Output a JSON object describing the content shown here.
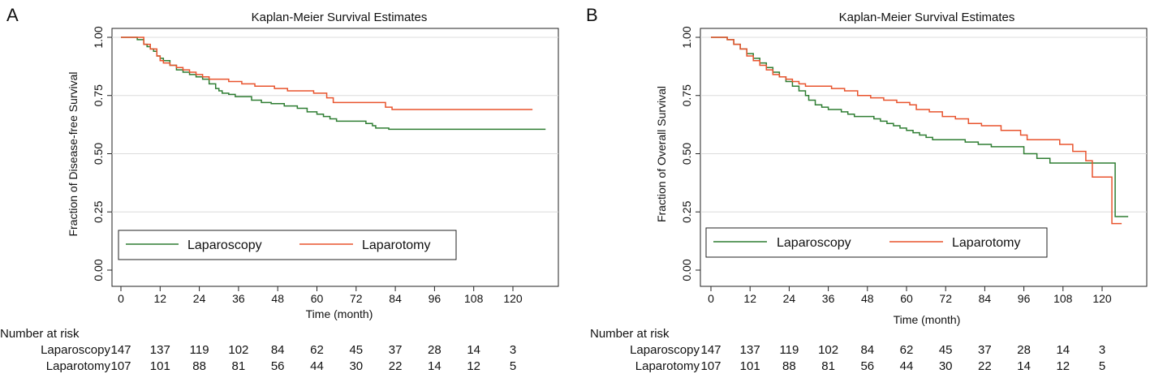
{
  "panels": [
    {
      "panel_label": "A",
      "title": "Kaplan-Meier Survival Estimates",
      "number_at_risk_label": "Number at risk",
      "chart_data": {
        "type": "line",
        "title": "Kaplan-Meier Survival Estimates",
        "xlabel": "Time (month)",
        "ylabel": "Fraction of Disease-free Survival",
        "xlim": [
          0,
          130
        ],
        "ylim": [
          0,
          1
        ],
        "xticks": [
          0,
          12,
          24,
          36,
          48,
          60,
          72,
          84,
          96,
          108,
          120
        ],
        "yticks": [
          0,
          0.25,
          0.5,
          0.75,
          1
        ],
        "ytick_labels": [
          "0.00",
          "0.25",
          "0.50",
          "0.75",
          "1.00"
        ],
        "grid": "horizontal",
        "legend_position": "bottom-inside",
        "series": [
          {
            "name": "Laparoscopy",
            "color": "#2e7d32",
            "x": [
              0,
              5,
              7,
              8,
              9,
              10,
              11,
              12,
              13,
              15,
              17,
              19,
              21,
              23,
              25,
              27,
              29,
              30,
              31,
              33,
              35,
              40,
              43,
              46,
              50,
              54,
              57,
              60,
              62,
              64,
              66,
              70,
              75,
              77,
              78,
              82,
              130
            ],
            "y": [
              1.0,
              0.99,
              0.97,
              0.96,
              0.95,
              0.94,
              0.92,
              0.91,
              0.9,
              0.88,
              0.86,
              0.85,
              0.84,
              0.83,
              0.82,
              0.8,
              0.78,
              0.77,
              0.76,
              0.755,
              0.745,
              0.73,
              0.72,
              0.715,
              0.705,
              0.695,
              0.68,
              0.67,
              0.66,
              0.65,
              0.64,
              0.64,
              0.63,
              0.62,
              0.61,
              0.605,
              0.605
            ]
          },
          {
            "name": "Laparotomy",
            "color": "#e8532d",
            "x": [
              0,
              7,
              9,
              11,
              12,
              13,
              15,
              17,
              19,
              21,
              23,
              25,
              27,
              29,
              33,
              37,
              41,
              47,
              51,
              55,
              59,
              60,
              63,
              65,
              73,
              75,
              81,
              83,
              126
            ],
            "y": [
              1.0,
              0.97,
              0.95,
              0.92,
              0.9,
              0.89,
              0.88,
              0.87,
              0.86,
              0.85,
              0.84,
              0.83,
              0.82,
              0.82,
              0.81,
              0.8,
              0.79,
              0.78,
              0.77,
              0.77,
              0.76,
              0.76,
              0.74,
              0.72,
              0.72,
              0.72,
              0.7,
              0.69,
              0.69
            ]
          }
        ],
        "at_risk": {
          "times": [
            0,
            12,
            24,
            36,
            48,
            60,
            72,
            84,
            96,
            108,
            120
          ],
          "rows": [
            {
              "name": "Laparoscopy",
              "counts": [
                "147",
                "137",
                "119",
                "102",
                "84",
                "62",
                "45",
                "37",
                "28",
                "14",
                "3"
              ]
            },
            {
              "name": "Laparotomy",
              "counts": [
                "107",
                "101",
                "88",
                "81",
                "56",
                "44",
                "30",
                "22",
                "14",
                "12",
                "5"
              ]
            }
          ]
        }
      }
    },
    {
      "panel_label": "B",
      "title": "Kaplan-Meier Survival Estimates",
      "number_at_risk_label": "Number at risk",
      "chart_data": {
        "type": "line",
        "title": "Kaplan-Meier Survival Estimates",
        "xlabel": "Time (month)",
        "ylabel": "Fraction of Overall Survival",
        "xlim": [
          0,
          130
        ],
        "ylim": [
          0,
          1
        ],
        "xticks": [
          0,
          12,
          24,
          36,
          48,
          60,
          72,
          84,
          96,
          108,
          120
        ],
        "yticks": [
          0,
          0.25,
          0.5,
          0.75,
          1
        ],
        "ytick_labels": [
          "0.00",
          "0.25",
          "0.50",
          "0.75",
          "1.00"
        ],
        "grid": "horizontal",
        "legend_position": "bottom-inside",
        "series": [
          {
            "name": "Laparoscopy",
            "color": "#2e7d32",
            "x": [
              0,
              5,
              7,
              9,
              11,
              13,
              15,
              17,
              19,
              21,
              23,
              25,
              27,
              29,
              30,
              32,
              34,
              36,
              40,
              42,
              44,
              46,
              50,
              52,
              54,
              56,
              58,
              60,
              62,
              64,
              66,
              68,
              72,
              78,
              82,
              86,
              96,
              100,
              104,
              110,
              120,
              124,
              128
            ],
            "y": [
              1.0,
              0.99,
              0.97,
              0.95,
              0.93,
              0.91,
              0.89,
              0.87,
              0.85,
              0.83,
              0.81,
              0.79,
              0.77,
              0.75,
              0.73,
              0.71,
              0.7,
              0.69,
              0.68,
              0.67,
              0.66,
              0.66,
              0.65,
              0.64,
              0.63,
              0.62,
              0.61,
              0.6,
              0.59,
              0.58,
              0.57,
              0.56,
              0.56,
              0.55,
              0.54,
              0.53,
              0.5,
              0.48,
              0.46,
              0.46,
              0.46,
              0.23,
              0.23
            ]
          },
          {
            "name": "Laparotomy",
            "color": "#e8532d",
            "x": [
              0,
              5,
              7,
              9,
              11,
              13,
              15,
              17,
              19,
              21,
              23,
              25,
              27,
              29,
              33,
              37,
              41,
              45,
              49,
              53,
              57,
              61,
              63,
              67,
              71,
              75,
              79,
              83,
              89,
              95,
              97,
              103,
              107,
              111,
              115,
              117,
              123,
              126
            ],
            "y": [
              1.0,
              0.99,
              0.97,
              0.95,
              0.92,
              0.9,
              0.88,
              0.86,
              0.84,
              0.83,
              0.82,
              0.81,
              0.8,
              0.79,
              0.79,
              0.78,
              0.77,
              0.75,
              0.74,
              0.73,
              0.72,
              0.71,
              0.69,
              0.68,
              0.66,
              0.65,
              0.63,
              0.62,
              0.6,
              0.58,
              0.56,
              0.56,
              0.54,
              0.51,
              0.47,
              0.4,
              0.2,
              0.2
            ]
          }
        ],
        "at_risk": {
          "times": [
            0,
            12,
            24,
            36,
            48,
            60,
            72,
            84,
            96,
            108,
            120
          ],
          "rows": [
            {
              "name": "Laparoscopy",
              "counts": [
                "147",
                "137",
                "119",
                "102",
                "84",
                "62",
                "45",
                "37",
                "28",
                "14",
                "3"
              ]
            },
            {
              "name": "Laparotomy",
              "counts": [
                "107",
                "101",
                "88",
                "81",
                "56",
                "44",
                "30",
                "22",
                "14",
                "12",
                "5"
              ]
            }
          ]
        }
      }
    }
  ]
}
